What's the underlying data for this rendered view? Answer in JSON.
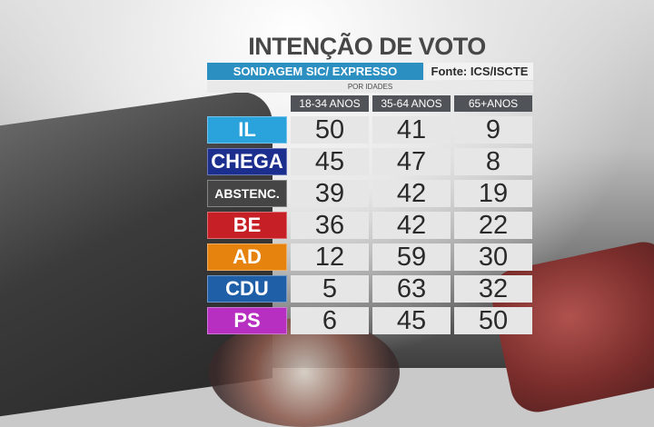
{
  "title": "INTENÇÃO DE VOTO",
  "header": {
    "poll": "SONDAGEM SIC/ EXPRESSO",
    "source": "Fonte: ICS/ISCTE",
    "subtitle": "POR IDADES"
  },
  "columns": [
    "18-34 ANOS",
    "35-64 ANOS",
    "65+ANOS"
  ],
  "rows": [
    {
      "party": "IL",
      "color": "#2aa3dc",
      "values": [
        "50",
        "41",
        "9"
      ]
    },
    {
      "party": "CHEGA",
      "color": "#1c2f8f",
      "values": [
        "45",
        "47",
        "8"
      ]
    },
    {
      "party": "ABSTENC.",
      "color": "#454545",
      "values": [
        "39",
        "42",
        "19"
      ]
    },
    {
      "party": "BE",
      "color": "#c71f26",
      "values": [
        "36",
        "42",
        "22"
      ]
    },
    {
      "party": "AD",
      "color": "#e6820e",
      "values": [
        "12",
        "59",
        "30"
      ]
    },
    {
      "party": "CDU",
      "color": "#1f5fa8",
      "values": [
        "5",
        "63",
        "32"
      ]
    },
    {
      "party": "PS",
      "color": "#b62fc0",
      "values": [
        "6",
        "45",
        "50"
      ]
    }
  ]
}
